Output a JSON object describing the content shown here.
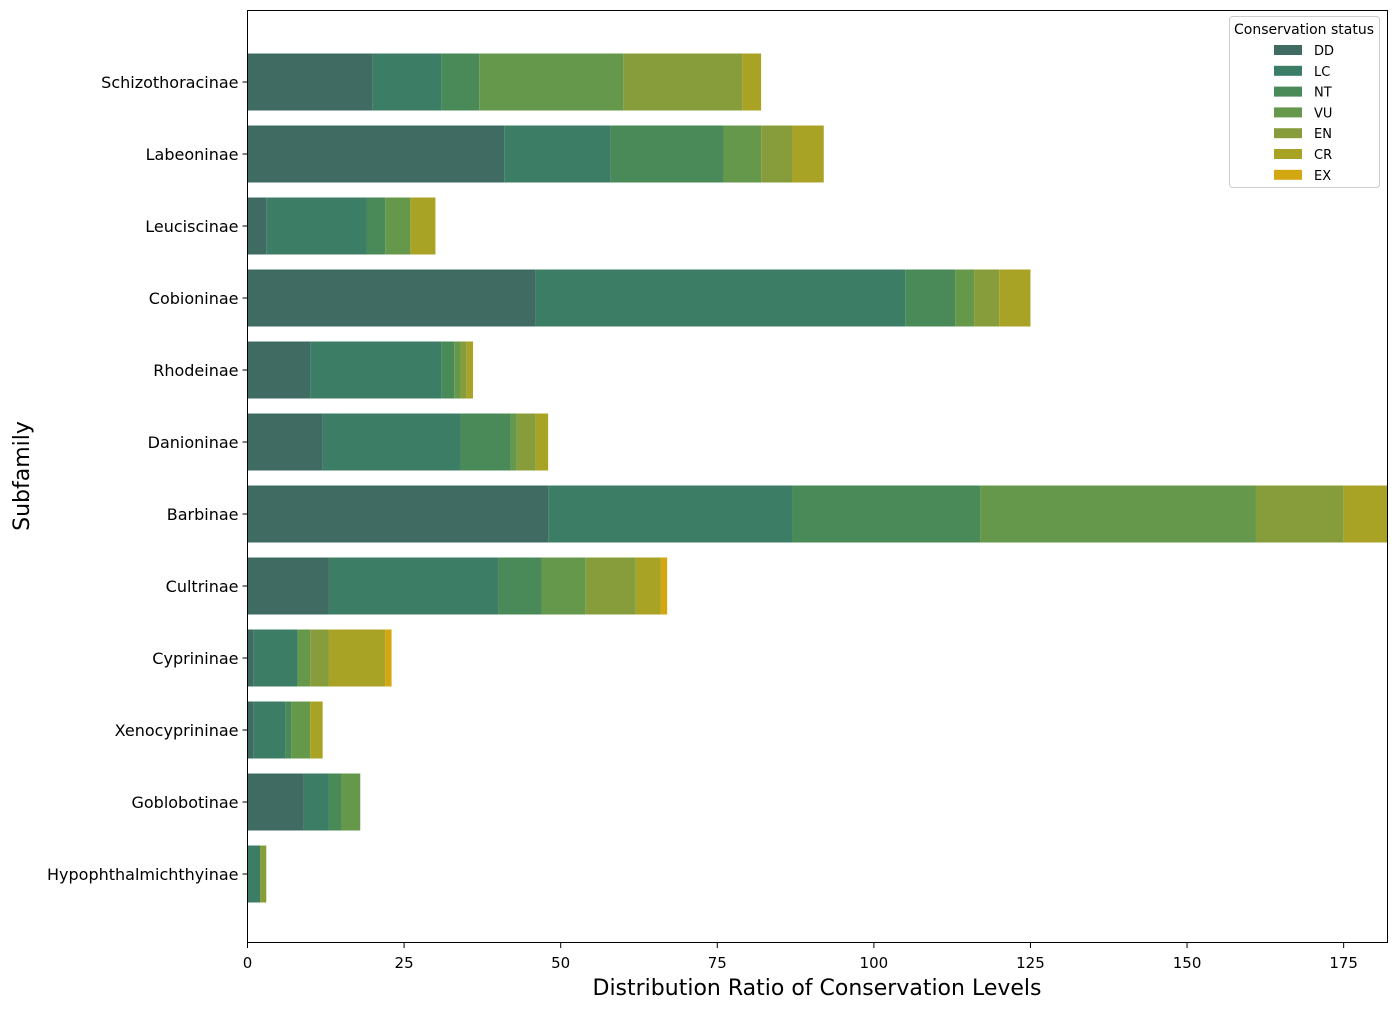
{
  "chart_data": {
    "type": "bar",
    "orientation": "horizontal",
    "stacked": true,
    "title": "",
    "xlabel": "Distribution Ratio of Conservation Levels",
    "ylabel": "Subfamily",
    "xlim": [
      0,
      182
    ],
    "xticks": [
      0,
      25,
      50,
      75,
      100,
      125,
      150,
      175
    ],
    "grid": false,
    "legend": {
      "title": "Conservation status",
      "placement": "top-right"
    },
    "categories": [
      "Schizothoracinae",
      "Labeoninae",
      "Leuciscinae",
      "Cobioninae",
      "Rhodeinae",
      "Danioninae",
      "Barbinae",
      "Cultrinae",
      "Cyprininae",
      "Xenocyprininae",
      "Goblobotinae",
      "Hypophthalmichthyinae"
    ],
    "series": [
      {
        "name": "DD",
        "color": "#3f6b63",
        "values": [
          20,
          41,
          3,
          46,
          10,
          12,
          48,
          13,
          1,
          1,
          9,
          0
        ]
      },
      {
        "name": "LC",
        "color": "#3c7d66",
        "values": [
          11,
          17,
          16,
          59,
          21,
          22,
          39,
          27,
          7,
          5,
          4,
          2
        ]
      },
      {
        "name": "NT",
        "color": "#4a8a59",
        "values": [
          6,
          18,
          3,
          8,
          2,
          8,
          30,
          7,
          0,
          1,
          2,
          0
        ]
      },
      {
        "name": "VU",
        "color": "#65984b",
        "values": [
          23,
          6,
          4,
          3,
          1,
          1,
          44,
          7,
          2,
          3,
          3,
          0
        ]
      },
      {
        "name": "EN",
        "color": "#879d3b",
        "values": [
          19,
          5,
          0,
          4,
          1,
          3,
          14,
          8,
          3,
          0,
          0,
          1
        ]
      },
      {
        "name": "CR",
        "color": "#a9a325",
        "values": [
          3,
          5,
          4,
          5,
          1,
          2,
          7,
          4,
          9,
          2,
          0,
          0
        ]
      },
      {
        "name": "EX",
        "color": "#d2a710",
        "values": [
          0,
          0,
          0,
          0,
          0,
          0,
          0,
          1,
          1,
          0,
          0,
          0
        ]
      }
    ]
  }
}
